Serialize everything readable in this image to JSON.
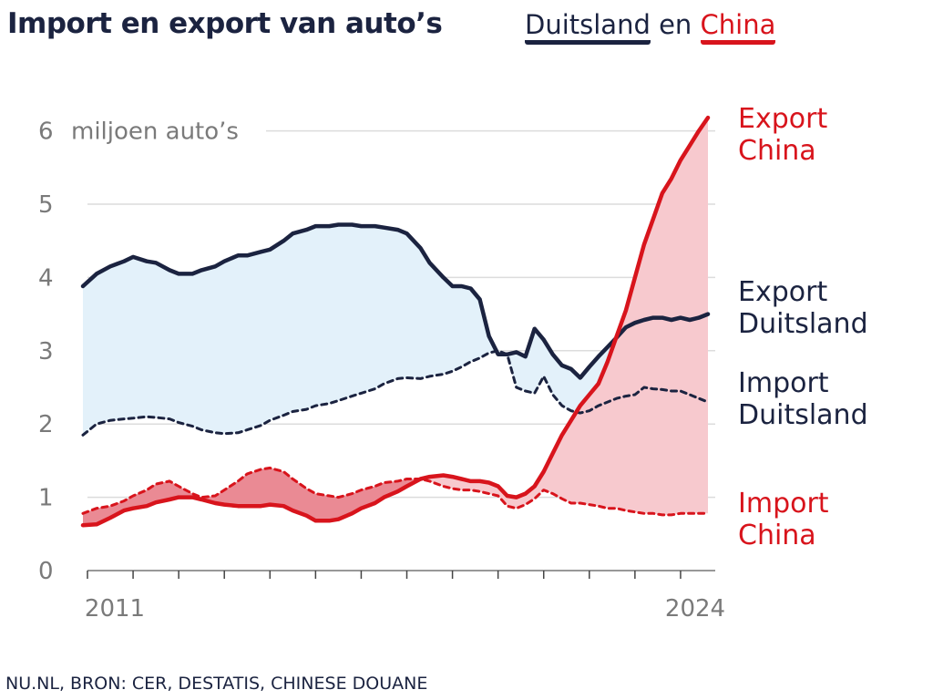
{
  "header": {
    "title": "Import en export van auto’s",
    "subtitle_a": "Duitsland",
    "subtitle_mid": " en ",
    "subtitle_b": "China"
  },
  "footer": {
    "source": "NU.NL, BRON: CER, DESTATIS, CHINESE DOUANE"
  },
  "colors": {
    "navy": "#1b2340",
    "red": "#d8141c",
    "blue_fill": "#e3f1fa",
    "red_fill": "#f7c9ce",
    "red_dark_fill": "#ea8a94",
    "grid": "#dcdcdc",
    "axis_text": "#7a7a7a"
  },
  "chart_data": {
    "type": "line",
    "ylabel": "miljoen auto’s",
    "ylim": [
      0,
      6.3
    ],
    "yticks": [
      0,
      1,
      2,
      3,
      4,
      5,
      6
    ],
    "xlim": [
      2011,
      2024.7
    ],
    "xtick_labels": [
      "2011",
      "2024"
    ],
    "grid": true,
    "series": [
      {
        "name": "Export Duitsland",
        "label_line1": "Export",
        "label_line2": "Duitsland",
        "style": "solid",
        "color": "#1b2340",
        "x": [
          2010.9,
          2011.2,
          2011.5,
          2011.8,
          2012.0,
          2012.3,
          2012.5,
          2012.8,
          2013.0,
          2013.3,
          2013.5,
          2013.8,
          2014.0,
          2014.3,
          2014.5,
          2014.8,
          2015.0,
          2015.3,
          2015.5,
          2015.8,
          2016.0,
          2016.3,
          2016.5,
          2016.8,
          2017.0,
          2017.3,
          2017.5,
          2017.8,
          2018.0,
          2018.3,
          2018.5,
          2018.8,
          2019.0,
          2019.2,
          2019.4,
          2019.6,
          2019.8,
          2020.0,
          2020.2,
          2020.4,
          2020.6,
          2020.8,
          2021.0,
          2021.2,
          2021.4,
          2021.6,
          2021.8,
          2022.0,
          2022.2,
          2022.4,
          2022.6,
          2022.8,
          2023.0,
          2023.2,
          2023.4,
          2023.6,
          2023.8,
          2024.0,
          2024.2,
          2024.4,
          2024.6
        ],
        "values": [
          3.88,
          4.05,
          4.15,
          4.22,
          4.28,
          4.22,
          4.2,
          4.1,
          4.05,
          4.05,
          4.1,
          4.15,
          4.22,
          4.3,
          4.3,
          4.35,
          4.38,
          4.5,
          4.6,
          4.65,
          4.7,
          4.7,
          4.72,
          4.72,
          4.7,
          4.7,
          4.68,
          4.65,
          4.6,
          4.4,
          4.2,
          4.0,
          3.88,
          3.88,
          3.85,
          3.7,
          3.2,
          2.95,
          2.95,
          2.98,
          2.92,
          3.3,
          3.15,
          2.95,
          2.8,
          2.75,
          2.63,
          2.78,
          2.92,
          3.05,
          3.18,
          3.32,
          3.38,
          3.42,
          3.45,
          3.45,
          3.42,
          3.45,
          3.42,
          3.45,
          3.5
        ]
      },
      {
        "name": "Import Duitsland",
        "label_line1": "Import",
        "label_line2": "Duitsland",
        "style": "dashed",
        "color": "#1b2340",
        "x": [
          2010.9,
          2011.2,
          2011.5,
          2011.8,
          2012.0,
          2012.3,
          2012.5,
          2012.8,
          2013.0,
          2013.3,
          2013.5,
          2013.8,
          2014.0,
          2014.3,
          2014.5,
          2014.8,
          2015.0,
          2015.3,
          2015.5,
          2015.8,
          2016.0,
          2016.3,
          2016.5,
          2016.8,
          2017.0,
          2017.3,
          2017.5,
          2017.8,
          2018.0,
          2018.3,
          2018.5,
          2018.8,
          2019.0,
          2019.2,
          2019.4,
          2019.6,
          2019.8,
          2020.0,
          2020.2,
          2020.4,
          2020.6,
          2020.8,
          2021.0,
          2021.2,
          2021.4,
          2021.6,
          2021.8,
          2022.0,
          2022.2,
          2022.4,
          2022.6,
          2022.8,
          2023.0,
          2023.2,
          2023.4,
          2023.6,
          2023.8,
          2024.0,
          2024.2,
          2024.4,
          2024.6
        ],
        "values": [
          1.85,
          2.0,
          2.05,
          2.07,
          2.08,
          2.1,
          2.09,
          2.07,
          2.02,
          1.97,
          1.92,
          1.88,
          1.87,
          1.88,
          1.92,
          1.98,
          2.05,
          2.12,
          2.17,
          2.2,
          2.25,
          2.28,
          2.32,
          2.38,
          2.42,
          2.48,
          2.55,
          2.62,
          2.63,
          2.62,
          2.65,
          2.68,
          2.72,
          2.78,
          2.85,
          2.9,
          2.97,
          3.0,
          2.95,
          2.5,
          2.45,
          2.42,
          2.65,
          2.4,
          2.25,
          2.18,
          2.15,
          2.18,
          2.25,
          2.3,
          2.35,
          2.38,
          2.4,
          2.5,
          2.48,
          2.47,
          2.45,
          2.45,
          2.4,
          2.35,
          2.3
        ]
      },
      {
        "name": "Export China",
        "label_line1": "Export",
        "label_line2": "China",
        "style": "solid",
        "color": "#d8141c",
        "x": [
          2010.9,
          2011.2,
          2011.5,
          2011.8,
          2012.0,
          2012.3,
          2012.5,
          2012.8,
          2013.0,
          2013.3,
          2013.5,
          2013.8,
          2014.0,
          2014.3,
          2014.5,
          2014.8,
          2015.0,
          2015.3,
          2015.5,
          2015.8,
          2016.0,
          2016.3,
          2016.5,
          2016.8,
          2017.0,
          2017.3,
          2017.5,
          2017.8,
          2018.0,
          2018.3,
          2018.5,
          2018.8,
          2019.0,
          2019.2,
          2019.4,
          2019.6,
          2019.8,
          2020.0,
          2020.2,
          2020.4,
          2020.6,
          2020.8,
          2021.0,
          2021.2,
          2021.4,
          2021.6,
          2021.8,
          2022.0,
          2022.2,
          2022.4,
          2022.6,
          2022.8,
          2023.0,
          2023.2,
          2023.4,
          2023.6,
          2023.8,
          2024.0,
          2024.2,
          2024.4,
          2024.6
        ],
        "values": [
          0.62,
          0.63,
          0.72,
          0.82,
          0.85,
          0.88,
          0.93,
          0.97,
          1.0,
          1.0,
          0.97,
          0.92,
          0.9,
          0.88,
          0.88,
          0.88,
          0.9,
          0.88,
          0.82,
          0.75,
          0.68,
          0.68,
          0.7,
          0.78,
          0.85,
          0.92,
          1.0,
          1.08,
          1.15,
          1.25,
          1.28,
          1.3,
          1.28,
          1.25,
          1.22,
          1.22,
          1.2,
          1.15,
          1.02,
          1.0,
          1.05,
          1.15,
          1.35,
          1.6,
          1.85,
          2.05,
          2.25,
          2.4,
          2.55,
          2.85,
          3.2,
          3.55,
          4.0,
          4.45,
          4.8,
          5.15,
          5.35,
          5.6,
          5.8,
          6.0,
          6.18
        ]
      },
      {
        "name": "Import China",
        "label_line1": "Import",
        "label_line2": "China",
        "style": "dashed",
        "color": "#d8141c",
        "x": [
          2010.9,
          2011.2,
          2011.5,
          2011.8,
          2012.0,
          2012.3,
          2012.5,
          2012.8,
          2013.0,
          2013.3,
          2013.5,
          2013.8,
          2014.0,
          2014.3,
          2014.5,
          2014.8,
          2015.0,
          2015.3,
          2015.5,
          2015.8,
          2016.0,
          2016.3,
          2016.5,
          2016.8,
          2017.0,
          2017.3,
          2017.5,
          2017.8,
          2018.0,
          2018.3,
          2018.5,
          2018.8,
          2019.0,
          2019.2,
          2019.4,
          2019.6,
          2019.8,
          2020.0,
          2020.2,
          2020.4,
          2020.6,
          2020.8,
          2021.0,
          2021.2,
          2021.4,
          2021.6,
          2021.8,
          2022.0,
          2022.2,
          2022.4,
          2022.6,
          2022.8,
          2023.0,
          2023.2,
          2023.4,
          2023.6,
          2023.8,
          2024.0,
          2024.2,
          2024.4,
          2024.6
        ],
        "values": [
          0.78,
          0.85,
          0.88,
          0.95,
          1.02,
          1.1,
          1.18,
          1.22,
          1.15,
          1.05,
          1.0,
          1.02,
          1.1,
          1.22,
          1.32,
          1.38,
          1.4,
          1.35,
          1.25,
          1.12,
          1.05,
          1.02,
          1.0,
          1.05,
          1.1,
          1.15,
          1.2,
          1.22,
          1.25,
          1.25,
          1.22,
          1.15,
          1.12,
          1.1,
          1.1,
          1.08,
          1.05,
          1.02,
          0.88,
          0.85,
          0.9,
          0.98,
          1.1,
          1.05,
          0.98,
          0.92,
          0.92,
          0.9,
          0.88,
          0.85,
          0.85,
          0.82,
          0.8,
          0.78,
          0.78,
          0.76,
          0.76,
          0.78,
          0.78,
          0.78,
          0.78
        ]
      }
    ]
  }
}
